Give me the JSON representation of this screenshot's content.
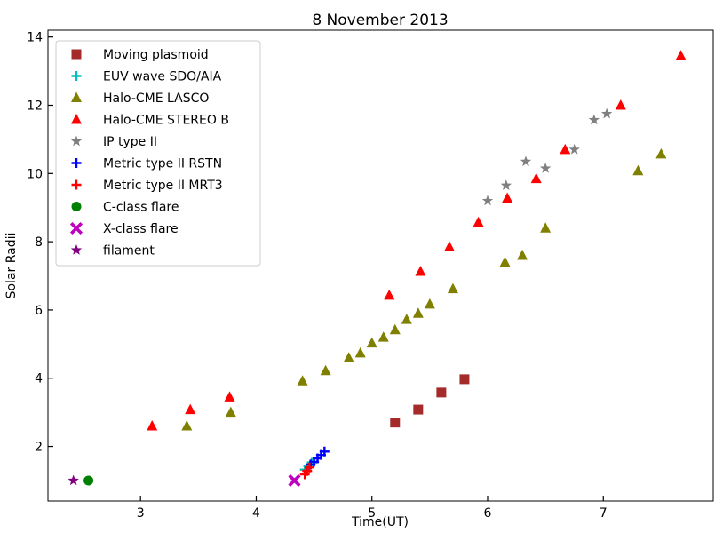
{
  "chart_data": {
    "type": "scatter",
    "title": "8 November 2013",
    "xlabel": "Time(UT)",
    "ylabel": "Solar Radii",
    "xlim": [
      2.2,
      7.95
    ],
    "ylim": [
      0.4,
      14.2
    ],
    "xticks": [
      3,
      4,
      5,
      6,
      7
    ],
    "yticks": [
      2,
      4,
      6,
      8,
      10,
      12,
      14
    ],
    "grid": false,
    "legend_position": "top-left",
    "series": [
      {
        "name": "Moving plasmoid",
        "marker": "square",
        "color": "#a52a2a",
        "points": [
          [
            5.2,
            2.7
          ],
          [
            5.4,
            3.08
          ],
          [
            5.6,
            3.58
          ],
          [
            5.8,
            3.97
          ]
        ]
      },
      {
        "name": "EUV wave SDO/AIA",
        "marker": "plus",
        "color": "#00bfbf",
        "points": [
          [
            4.42,
            1.32
          ],
          [
            4.45,
            1.42
          ],
          [
            4.48,
            1.52
          ]
        ]
      },
      {
        "name": "Halo-CME LASCO",
        "marker": "triangle",
        "color": "#808000",
        "points": [
          [
            3.4,
            2.6
          ],
          [
            3.78,
            3.0
          ],
          [
            4.4,
            3.92
          ],
          [
            4.6,
            4.22
          ],
          [
            4.8,
            4.6
          ],
          [
            4.9,
            4.74
          ],
          [
            5.0,
            5.03
          ],
          [
            5.1,
            5.2
          ],
          [
            5.2,
            5.42
          ],
          [
            5.3,
            5.72
          ],
          [
            5.4,
            5.9
          ],
          [
            5.5,
            6.17
          ],
          [
            5.7,
            6.62
          ],
          [
            6.15,
            7.4
          ],
          [
            6.3,
            7.6
          ],
          [
            6.5,
            8.4
          ],
          [
            7.3,
            10.08
          ],
          [
            7.5,
            10.57
          ]
        ]
      },
      {
        "name": "Halo-CME STEREO B",
        "marker": "triangle",
        "color": "#ff0000",
        "points": [
          [
            3.1,
            2.6
          ],
          [
            3.43,
            3.08
          ],
          [
            3.77,
            3.45
          ],
          [
            5.15,
            6.43
          ],
          [
            5.42,
            7.13
          ],
          [
            5.67,
            7.85
          ],
          [
            5.92,
            8.57
          ],
          [
            6.17,
            9.28
          ],
          [
            6.42,
            9.85
          ],
          [
            6.67,
            10.7
          ],
          [
            7.15,
            12.0
          ],
          [
            7.67,
            13.45
          ]
        ]
      },
      {
        "name": "IP type II",
        "marker": "star",
        "color": "#808080",
        "points": [
          [
            6.0,
            9.2
          ],
          [
            6.16,
            9.65
          ],
          [
            6.33,
            10.35
          ],
          [
            6.5,
            10.15
          ],
          [
            6.75,
            10.7
          ],
          [
            6.92,
            11.57
          ],
          [
            7.03,
            11.75
          ]
        ]
      },
      {
        "name": "Metric type II RSTN",
        "marker": "plus",
        "color": "#0000ff",
        "points": [
          [
            4.47,
            1.47
          ],
          [
            4.5,
            1.55
          ],
          [
            4.53,
            1.65
          ],
          [
            4.56,
            1.75
          ],
          [
            4.59,
            1.85
          ]
        ]
      },
      {
        "name": "Metric type II MRT3",
        "marker": "plus",
        "color": "#ff0000",
        "points": [
          [
            4.42,
            1.18
          ],
          [
            4.44,
            1.28
          ],
          [
            4.46,
            1.38
          ]
        ]
      },
      {
        "name": "C-class flare",
        "marker": "circle",
        "color": "#008000",
        "points": [
          [
            2.55,
            1.0
          ]
        ]
      },
      {
        "name": "X-class flare",
        "marker": "x",
        "color": "#bf00bf",
        "points": [
          [
            4.33,
            1.0
          ]
        ]
      },
      {
        "name": "filament",
        "marker": "star",
        "color": "#800080",
        "points": [
          [
            2.42,
            1.0
          ]
        ]
      }
    ]
  }
}
